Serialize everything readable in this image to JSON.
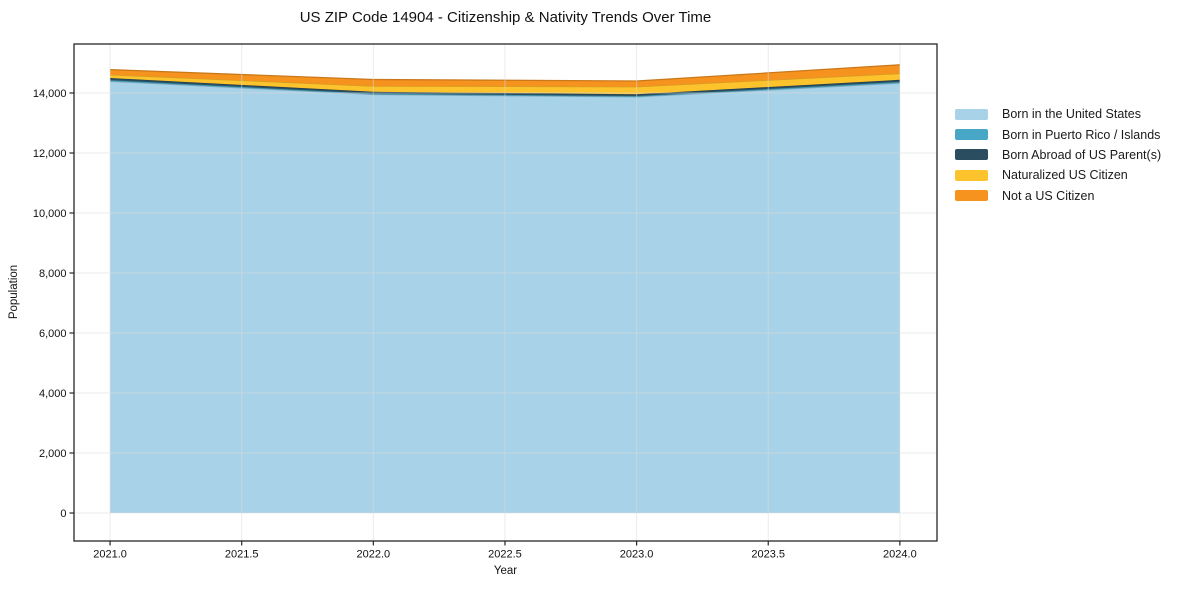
{
  "title": "US ZIP Code 14904 - Citizenship & Nativity Trends Over Time",
  "axes": {
    "xlabel": "Year",
    "ylabel": "Population",
    "x_ticks": [
      "2021.0",
      "2021.5",
      "2022.0",
      "2022.5",
      "2023.0",
      "2023.5",
      "2024.0"
    ],
    "y_ticks": [
      "0",
      "2,000",
      "4,000",
      "6,000",
      "8,000",
      "10,000",
      "12,000",
      "14,000"
    ]
  },
  "chart_data": {
    "type": "area",
    "stacked": true,
    "title": "US ZIP Code 14904 - Citizenship & Nativity Trends Over Time",
    "xlabel": "Year",
    "ylabel": "Population",
    "x": [
      2021,
      2022,
      2023,
      2024
    ],
    "series": [
      {
        "name": "Born in the United States",
        "color": "#a7d2e8",
        "values": [
          14390,
          13950,
          13870,
          14330
        ]
      },
      {
        "name": "Born in Puerto Rico / Islands",
        "color": "#48a7c6",
        "values": [
          40,
          30,
          30,
          40
        ]
      },
      {
        "name": "Born Abroad of US Parent(s)",
        "color": "#2a4d5f",
        "values": [
          70,
          60,
          60,
          70
        ]
      },
      {
        "name": "Naturalized US Citizen",
        "color": "#fcc32d",
        "values": [
          110,
          190,
          250,
          210
        ]
      },
      {
        "name": "Not a US Citizen",
        "color": "#f6921e",
        "values": [
          170,
          220,
          190,
          290
        ]
      }
    ],
    "totals": [
      14780,
      14450,
      14400,
      14940
    ],
    "xlim": [
      2020.863,
      2024.141
    ],
    "ylim": [
      -933,
      15633
    ],
    "x_tick_values": [
      2021,
      2021.5,
      2022,
      2022.5,
      2023,
      2023.5,
      2024
    ],
    "y_tick_values": [
      0,
      2000,
      4000,
      6000,
      8000,
      10000,
      12000,
      14000
    ],
    "grid": true,
    "grid_color": "#dcdcdc",
    "spine_color": "#262626",
    "legend_position": "right"
  },
  "legend": {
    "items": [
      {
        "label": "Born in the United States",
        "color": "#a7d2e8"
      },
      {
        "label": "Born in Puerto Rico / Islands",
        "color": "#48a7c6"
      },
      {
        "label": "Born Abroad of US Parent(s)",
        "color": "#2a4d5f"
      },
      {
        "label": "Naturalized US Citizen",
        "color": "#fcc32d"
      },
      {
        "label": "Not a US Citizen",
        "color": "#f6921e"
      }
    ]
  }
}
